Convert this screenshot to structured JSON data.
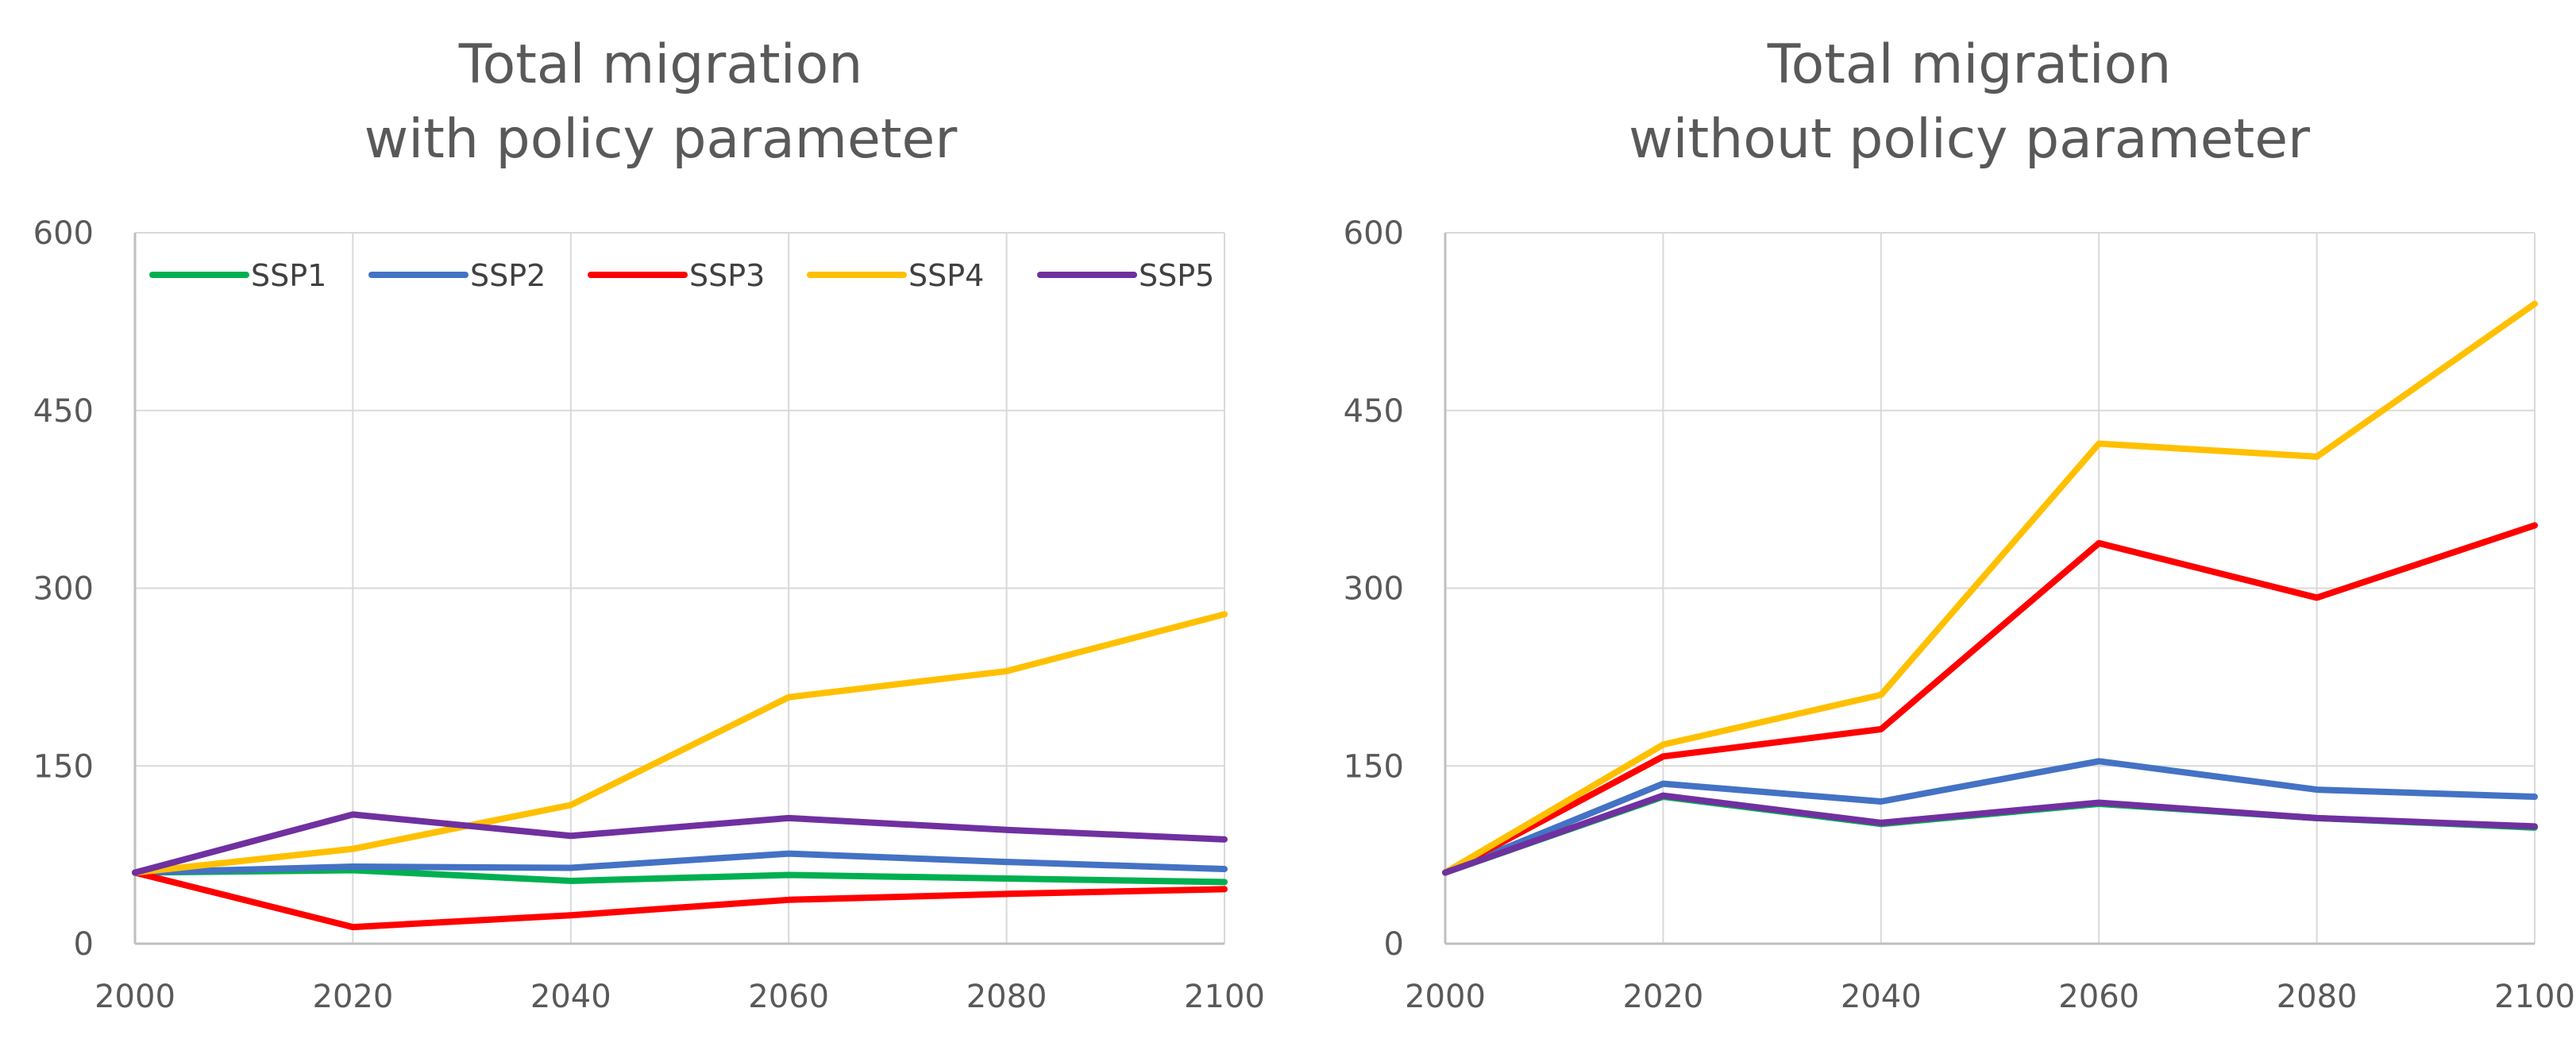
{
  "chart_data": [
    {
      "type": "line",
      "title_line1": "Total migration",
      "title_line2": "with policy parameter",
      "x": [
        2000,
        2020,
        2040,
        2060,
        2080,
        2100
      ],
      "x_ticks": [
        "2000",
        "2020",
        "2040",
        "2060",
        "2080",
        "2100"
      ],
      "y_ticks": [
        "0",
        "150",
        "300",
        "450",
        "600"
      ],
      "ylim": [
        0,
        600
      ],
      "grid": true,
      "legend": "top",
      "series": [
        {
          "name": "SSP1",
          "color": "#00b050",
          "values": [
            60,
            62,
            53,
            58,
            55,
            52
          ]
        },
        {
          "name": "SSP2",
          "color": "#4472c4",
          "values": [
            60,
            65,
            64,
            76,
            69,
            63
          ]
        },
        {
          "name": "SSP3",
          "color": "#ff0000",
          "values": [
            60,
            14,
            24,
            37,
            42,
            46
          ]
        },
        {
          "name": "SSP4",
          "color": "#ffc000",
          "values": [
            60,
            80,
            117,
            208,
            230,
            278
          ]
        },
        {
          "name": "SSP5",
          "color": "#7030a0",
          "values": [
            60,
            109,
            91,
            106,
            96,
            88
          ]
        }
      ]
    },
    {
      "type": "line",
      "title_line1": "Total migration",
      "title_line2": "without policy parameter",
      "x": [
        2000,
        2020,
        2040,
        2060,
        2080,
        2100
      ],
      "x_ticks": [
        "2000",
        "2020",
        "2040",
        "2060",
        "2080",
        "2100"
      ],
      "y_ticks": [
        "0",
        "150",
        "300",
        "450",
        "600"
      ],
      "ylim": [
        0,
        600
      ],
      "grid": true,
      "legend": "none",
      "series": [
        {
          "name": "SSP1",
          "color": "#00b050",
          "values": [
            60,
            124,
            101,
            118,
            106,
            98
          ]
        },
        {
          "name": "SSP2",
          "color": "#4472c4",
          "values": [
            60,
            135,
            120,
            154,
            130,
            124
          ]
        },
        {
          "name": "SSP3",
          "color": "#ff0000",
          "values": [
            60,
            158,
            181,
            338,
            292,
            353
          ]
        },
        {
          "name": "SSP4",
          "color": "#ffc000",
          "values": [
            60,
            168,
            210,
            422,
            411,
            540
          ]
        },
        {
          "name": "SSP5",
          "color": "#7030a0",
          "values": [
            60,
            125,
            102,
            119,
            106,
            99
          ]
        }
      ]
    }
  ]
}
